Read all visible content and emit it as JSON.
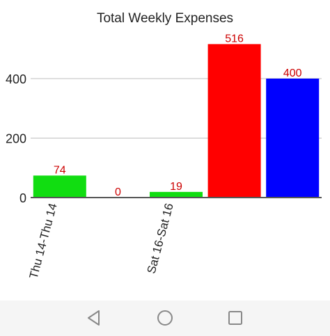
{
  "chart_data": {
    "type": "bar",
    "title": "Total Weekly Expenses",
    "categories": [
      "Thu 14-Thu 14",
      "",
      "Sat 16-Sat 16",
      "",
      ""
    ],
    "values": [
      74,
      0,
      19,
      516,
      400
    ],
    "bar_colors": [
      "#11dd11",
      "#11dd11",
      "#11dd11",
      "#ff0000",
      "#0000ff"
    ],
    "value_label_color": "#cc0000",
    "ylim": [
      0,
      540
    ],
    "yticks": [
      0,
      200,
      400
    ],
    "grid": true,
    "xlabel": "",
    "ylabel": ""
  },
  "navbar": {
    "back_icon": "back-triangle-icon",
    "home_icon": "home-circle-icon",
    "recents_icon": "recents-square-icon"
  }
}
